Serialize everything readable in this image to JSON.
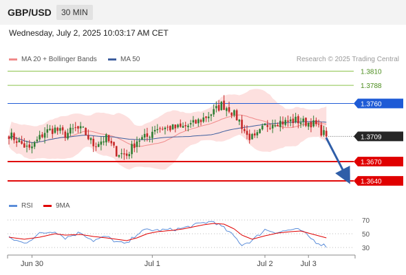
{
  "header": {
    "pair": "GBP/USD",
    "timeframe": "30 MIN",
    "timestamp": "Wednesday, July 2, 2025 10:03:17 AM CET"
  },
  "legend": {
    "ma_bb": "MA 20 + Bollinger Bands",
    "ma50": "MA 50",
    "credit": "Research © 2025 Trading Central"
  },
  "rsi_legend": {
    "rsi": "RSI",
    "ma9": "9MA"
  },
  "colors": {
    "ma20": "#f08a8a",
    "bands": "#fde0df",
    "ma50": "#3d5e9e",
    "up": "#2e7d32",
    "down": "#c62828",
    "green_level": "#8bc34a",
    "blue_level": "#1e5bd6",
    "red_level": "#e00000",
    "rsi": "#5b8dd9",
    "rsi_ma": "#e00000"
  },
  "chart_data": [
    {
      "type": "candlestick",
      "title": "GBP/USD",
      "ylim": [
        1.3622,
        1.3818
      ],
      "x_ticks": [
        "Jun 30",
        "Jul 1",
        "Jul 2",
        "Jul 3"
      ],
      "tick_index": [
        9,
        56,
        100,
        117
      ],
      "n_periods": 125,
      "levels": [
        {
          "value": "1.3810",
          "style": "green"
        },
        {
          "value": "1.3788",
          "style": "green"
        },
        {
          "value": "1.3760",
          "style": "blue"
        },
        {
          "value": "1.3709",
          "style": "current"
        },
        {
          "value": "1.3670",
          "style": "red"
        },
        {
          "value": "1.3640",
          "style": "red"
        }
      ],
      "forecast_arrow": {
        "from_index": 125,
        "from": 1.3709,
        "to_index": 131,
        "to": 1.364
      },
      "anchors": [
        [
          0,
          1.3712
        ],
        [
          8,
          1.3688
        ],
        [
          14,
          1.3716
        ],
        [
          18,
          1.372
        ],
        [
          22,
          1.3712
        ],
        [
          26,
          1.3721
        ],
        [
          29,
          1.3718
        ],
        [
          33,
          1.3696
        ],
        [
          38,
          1.3706
        ],
        [
          42,
          1.3684
        ],
        [
          46,
          1.368
        ],
        [
          50,
          1.3703
        ],
        [
          54,
          1.3708
        ],
        [
          57,
          1.3722
        ],
        [
          62,
          1.3722
        ],
        [
          67,
          1.3722
        ],
        [
          72,
          1.3728
        ],
        [
          76,
          1.3737
        ],
        [
          80,
          1.3747
        ],
        [
          83,
          1.3758
        ],
        [
          86,
          1.3752
        ],
        [
          90,
          1.3733
        ],
        [
          93,
          1.371
        ],
        [
          96,
          1.3705
        ],
        [
          100,
          1.3725
        ],
        [
          104,
          1.3732
        ],
        [
          108,
          1.3731
        ],
        [
          112,
          1.3734
        ],
        [
          115,
          1.3731
        ],
        [
          118,
          1.373
        ],
        [
          120,
          1.3726
        ],
        [
          122,
          1.3717
        ],
        [
          124,
          1.3709
        ]
      ]
    },
    {
      "type": "line",
      "title": "RSI",
      "ylim": [
        24,
        76
      ],
      "y_ticks": [
        "70",
        "50",
        "30"
      ],
      "series": [
        {
          "name": "RSI",
          "anchors": [
            [
              0,
              44
            ],
            [
              6,
              36
            ],
            [
              12,
              50
            ],
            [
              18,
              54
            ],
            [
              22,
              44
            ],
            [
              28,
              52
            ],
            [
              33,
              40
            ],
            [
              38,
              46
            ],
            [
              42,
              38
            ],
            [
              46,
              35
            ],
            [
              50,
              50
            ],
            [
              54,
              56
            ],
            [
              58,
              55
            ],
            [
              64,
              56
            ],
            [
              68,
              58
            ],
            [
              72,
              62
            ],
            [
              76,
              66
            ],
            [
              80,
              68
            ],
            [
              84,
              58
            ],
            [
              88,
              46
            ],
            [
              91,
              34
            ],
            [
              95,
              40
            ],
            [
              100,
              56
            ],
            [
              105,
              52
            ],
            [
              110,
              56
            ],
            [
              114,
              55
            ],
            [
              117,
              46
            ],
            [
              120,
              38
            ],
            [
              124,
              32
            ]
          ]
        },
        {
          "name": "9MA",
          "anchors": [
            [
              0,
              45
            ],
            [
              6,
              42
            ],
            [
              12,
              45
            ],
            [
              18,
              50
            ],
            [
              22,
              48
            ],
            [
              28,
              49
            ],
            [
              33,
              46
            ],
            [
              38,
              44
            ],
            [
              42,
              42
            ],
            [
              46,
              40
            ],
            [
              50,
              44
            ],
            [
              54,
              50
            ],
            [
              58,
              53
            ],
            [
              64,
              55
            ],
            [
              68,
              57
            ],
            [
              72,
              60
            ],
            [
              76,
              63
            ],
            [
              80,
              65
            ],
            [
              84,
              64
            ],
            [
              88,
              57
            ],
            [
              91,
              48
            ],
            [
              95,
              42
            ],
            [
              100,
              47
            ],
            [
              105,
              51
            ],
            [
              110,
              53
            ],
            [
              114,
              54
            ],
            [
              117,
              51
            ],
            [
              120,
              48
            ],
            [
              124,
              44
            ]
          ]
        }
      ]
    }
  ]
}
